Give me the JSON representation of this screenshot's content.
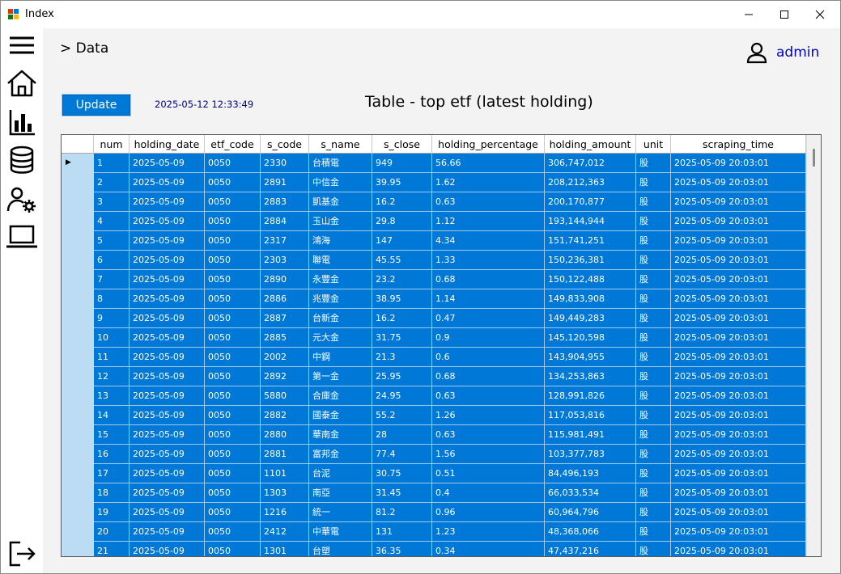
{
  "window": {
    "title": "Index",
    "controls": [
      "minimize-icon",
      "maximize-icon",
      "close-icon"
    ]
  },
  "sidebar": {
    "items": [
      {
        "icon": "menu-icon"
      },
      {
        "icon": "home-icon"
      },
      {
        "icon": "bar-chart-icon"
      },
      {
        "icon": "database-icon"
      },
      {
        "icon": "user-settings-icon"
      },
      {
        "icon": "laptop-icon"
      },
      {
        "icon": "logout-icon"
      }
    ]
  },
  "header": {
    "breadcrumb": "> Data",
    "user_icon": "user-icon",
    "user_name": "admin"
  },
  "toolbar": {
    "update_label": "Update",
    "timestamp": "2025-05-12 12:33:49",
    "table_title": "Table - top etf (latest holding)"
  },
  "colors": {
    "selection": "#0078d7",
    "row_header": "#bcdcf4",
    "timestamp_text": "#00008b",
    "user_text": "#0000c8"
  },
  "table": {
    "columns": [
      "num",
      "holding_date",
      "etf_code",
      "s_code",
      "s_name",
      "s_close",
      "holding_percentage",
      "holding_amount",
      "unit",
      "scraping_time"
    ],
    "current_row_indicator": "▶",
    "rows": [
      [
        "1",
        "2025-05-09",
        "0050",
        "2330",
        "台積電",
        "949",
        "56.66",
        "306,747,012",
        "股",
        "2025-05-09 20:03:01"
      ],
      [
        "2",
        "2025-05-09",
        "0050",
        "2891",
        "中信金",
        "39.95",
        "1.62",
        "208,212,363",
        "股",
        "2025-05-09 20:03:01"
      ],
      [
        "3",
        "2025-05-09",
        "0050",
        "2883",
        "凱基金",
        "16.2",
        "0.63",
        "200,170,877",
        "股",
        "2025-05-09 20:03:01"
      ],
      [
        "4",
        "2025-05-09",
        "0050",
        "2884",
        "玉山金",
        "29.8",
        "1.12",
        "193,144,944",
        "股",
        "2025-05-09 20:03:01"
      ],
      [
        "5",
        "2025-05-09",
        "0050",
        "2317",
        "鴻海",
        "147",
        "4.34",
        "151,741,251",
        "股",
        "2025-05-09 20:03:01"
      ],
      [
        "6",
        "2025-05-09",
        "0050",
        "2303",
        "聯電",
        "45.55",
        "1.33",
        "150,236,381",
        "股",
        "2025-05-09 20:03:01"
      ],
      [
        "7",
        "2025-05-09",
        "0050",
        "2890",
        "永豐金",
        "23.2",
        "0.68",
        "150,122,488",
        "股",
        "2025-05-09 20:03:01"
      ],
      [
        "8",
        "2025-05-09",
        "0050",
        "2886",
        "兆豐金",
        "38.95",
        "1.14",
        "149,833,908",
        "股",
        "2025-05-09 20:03:01"
      ],
      [
        "9",
        "2025-05-09",
        "0050",
        "2887",
        "台新金",
        "16.2",
        "0.47",
        "149,449,283",
        "股",
        "2025-05-09 20:03:01"
      ],
      [
        "10",
        "2025-05-09",
        "0050",
        "2885",
        "元大金",
        "31.75",
        "0.9",
        "145,120,598",
        "股",
        "2025-05-09 20:03:01"
      ],
      [
        "11",
        "2025-05-09",
        "0050",
        "2002",
        "中鋼",
        "21.3",
        "0.6",
        "143,904,955",
        "股",
        "2025-05-09 20:03:01"
      ],
      [
        "12",
        "2025-05-09",
        "0050",
        "2892",
        "第一金",
        "25.95",
        "0.68",
        "134,253,863",
        "股",
        "2025-05-09 20:03:01"
      ],
      [
        "13",
        "2025-05-09",
        "0050",
        "5880",
        "合庫金",
        "24.95",
        "0.63",
        "128,991,826",
        "股",
        "2025-05-09 20:03:01"
      ],
      [
        "14",
        "2025-05-09",
        "0050",
        "2882",
        "國泰金",
        "55.2",
        "1.26",
        "117,053,816",
        "股",
        "2025-05-09 20:03:01"
      ],
      [
        "15",
        "2025-05-09",
        "0050",
        "2880",
        "華南金",
        "28",
        "0.63",
        "115,981,491",
        "股",
        "2025-05-09 20:03:01"
      ],
      [
        "16",
        "2025-05-09",
        "0050",
        "2881",
        "富邦金",
        "77.4",
        "1.56",
        "103,377,783",
        "股",
        "2025-05-09 20:03:01"
      ],
      [
        "17",
        "2025-05-09",
        "0050",
        "1101",
        "台泥",
        "30.75",
        "0.51",
        "84,496,193",
        "股",
        "2025-05-09 20:03:01"
      ],
      [
        "18",
        "2025-05-09",
        "0050",
        "1303",
        "南亞",
        "31.45",
        "0.4",
        "66,033,534",
        "股",
        "2025-05-09 20:03:01"
      ],
      [
        "19",
        "2025-05-09",
        "0050",
        "1216",
        "統一",
        "81.2",
        "0.96",
        "60,964,796",
        "股",
        "2025-05-09 20:03:01"
      ],
      [
        "20",
        "2025-05-09",
        "0050",
        "2412",
        "中華電",
        "131",
        "1.23",
        "48,368,066",
        "股",
        "2025-05-09 20:03:01"
      ],
      [
        "21",
        "2025-05-09",
        "0050",
        "1301",
        "台塑",
        "36.35",
        "0.34",
        "47,437,216",
        "股",
        "2025-05-09 20:03:01"
      ]
    ]
  }
}
